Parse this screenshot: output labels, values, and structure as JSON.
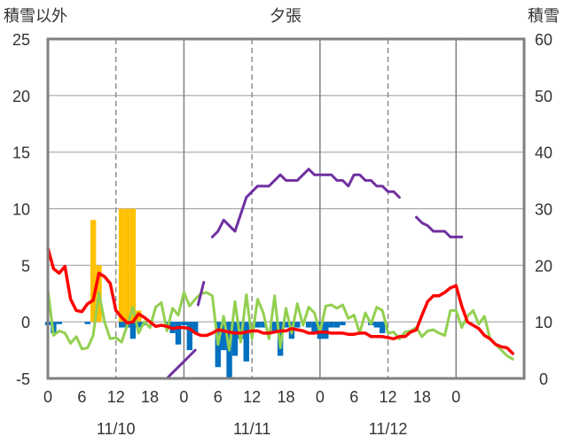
{
  "chart_data": {
    "type": "bar+line",
    "title": "夕張",
    "left_axis_title": "積雪以外",
    "right_axis_title": "積雪",
    "left_ylim": [
      -5,
      25
    ],
    "left_yticks": [
      "25",
      "20",
      "15",
      "10",
      "5",
      "0",
      "-5"
    ],
    "right_ylim": [
      0,
      60
    ],
    "right_yticks": [
      "60",
      "50",
      "40",
      "30",
      "20",
      "10",
      "0"
    ],
    "x_hour_labels": [
      "0",
      "6",
      "12",
      "18",
      "0",
      "6",
      "12",
      "18",
      "0",
      "6",
      "12",
      "18",
      "0"
    ],
    "date_labels": [
      "11/10",
      "11/11",
      "11/12"
    ],
    "grid": true,
    "colors": {
      "snowfall_bar": "#ffc000",
      "precip_bar": "#0070c0",
      "temperature": "#ff0000",
      "dewpoint": "#92d050",
      "snow_depth": "#7030a0",
      "frame": "#808080"
    },
    "series": [
      {
        "key": "snowfall",
        "kind": "bar",
        "axis": "left",
        "color": "#ffc000",
        "points": [
          [
            8,
            9
          ],
          [
            9,
            5
          ],
          [
            13,
            10
          ],
          [
            14,
            10
          ],
          [
            15,
            10
          ],
          [
            16,
            1
          ]
        ]
      },
      {
        "key": "precip",
        "kind": "bar",
        "axis": "left",
        "color": "#0070c0",
        "points": [
          [
            0,
            -0.3
          ],
          [
            1,
            -1.0
          ],
          [
            2,
            -0.2
          ],
          [
            7,
            -0.2
          ],
          [
            13,
            -0.5
          ],
          [
            14,
            -0.5
          ],
          [
            15,
            -1.5
          ],
          [
            16,
            -0.5
          ],
          [
            17,
            -0.3
          ],
          [
            21,
            -0.5
          ],
          [
            22,
            -1.0
          ],
          [
            23,
            -2.0
          ],
          [
            24,
            -0.3
          ],
          [
            25,
            -2.5
          ],
          [
            26,
            -1.0
          ],
          [
            30,
            -4.0
          ],
          [
            31,
            -2.5
          ],
          [
            32,
            -5.0
          ],
          [
            33,
            -3.0
          ],
          [
            34,
            -1.5
          ],
          [
            35,
            -3.5
          ],
          [
            37,
            -0.5
          ],
          [
            38,
            -0.5
          ],
          [
            40,
            -1.0
          ],
          [
            41,
            -3.0
          ],
          [
            42,
            -0.5
          ],
          [
            43,
            -1.5
          ],
          [
            44,
            -0.5
          ],
          [
            46,
            -0.5
          ],
          [
            47,
            -1.0
          ],
          [
            48,
            -1.5
          ],
          [
            49,
            -1.5
          ],
          [
            50,
            -0.5
          ],
          [
            51,
            -0.5
          ],
          [
            52,
            -0.3
          ],
          [
            57,
            -0.3
          ],
          [
            58,
            -0.5
          ],
          [
            59,
            -1.0
          ]
        ]
      },
      {
        "key": "temperature",
        "kind": "line",
        "axis": "left",
        "color": "#ff0000",
        "points": [
          [
            0,
            6.5
          ],
          [
            1,
            4.7
          ],
          [
            2,
            4.3
          ],
          [
            3,
            4.9
          ],
          [
            4,
            2.0
          ],
          [
            5,
            1.0
          ],
          [
            6,
            0.9
          ],
          [
            7,
            1.6
          ],
          [
            8,
            1.9
          ],
          [
            9,
            4.3
          ],
          [
            10,
            4.0
          ],
          [
            11,
            3.4
          ],
          [
            12,
            1.0
          ],
          [
            13,
            0.4
          ],
          [
            14,
            -0.1
          ],
          [
            15,
            0.0
          ],
          [
            16,
            0.7
          ],
          [
            17,
            0.4
          ],
          [
            18,
            0.0
          ],
          [
            19,
            -0.4
          ],
          [
            20,
            -0.3
          ],
          [
            21,
            -0.4
          ],
          [
            22,
            -0.6
          ],
          [
            23,
            -0.5
          ],
          [
            24,
            -0.5
          ],
          [
            25,
            -0.6
          ],
          [
            26,
            -1.0
          ],
          [
            27,
            -1.2
          ],
          [
            28,
            -1.2
          ],
          [
            29,
            -1.0
          ],
          [
            30,
            -0.7
          ],
          [
            31,
            -0.8
          ],
          [
            32,
            -0.9
          ],
          [
            33,
            -1.0
          ],
          [
            34,
            -1.0
          ],
          [
            35,
            -0.9
          ],
          [
            36,
            -0.8
          ],
          [
            37,
            -0.8
          ],
          [
            38,
            -1.0
          ],
          [
            39,
            -1.0
          ],
          [
            40,
            -0.9
          ],
          [
            41,
            -0.8
          ],
          [
            42,
            -0.8
          ],
          [
            43,
            -0.6
          ],
          [
            44,
            -0.7
          ],
          [
            45,
            -0.8
          ],
          [
            46,
            -1.0
          ],
          [
            47,
            -1.0
          ],
          [
            48,
            -0.9
          ],
          [
            49,
            -0.9
          ],
          [
            50,
            -1.0
          ],
          [
            51,
            -1.0
          ],
          [
            52,
            -1.0
          ],
          [
            53,
            -1.1
          ],
          [
            54,
            -1.1
          ],
          [
            55,
            -1.0
          ],
          [
            56,
            -1.0
          ],
          [
            57,
            -1.3
          ],
          [
            58,
            -1.3
          ],
          [
            59,
            -1.3
          ],
          [
            60,
            -1.4
          ],
          [
            61,
            -1.5
          ],
          [
            62,
            -1.3
          ],
          [
            63,
            -1.3
          ],
          [
            64,
            -0.9
          ],
          [
            65,
            -0.7
          ],
          [
            66,
            0.6
          ],
          [
            67,
            1.8
          ],
          [
            68,
            2.3
          ],
          [
            69,
            2.3
          ],
          [
            70,
            2.6
          ],
          [
            71,
            3.0
          ],
          [
            72,
            3.2
          ],
          [
            73,
            1.4
          ],
          [
            74,
            0.0
          ],
          [
            75,
            -0.3
          ],
          [
            76,
            -0.6
          ],
          [
            77,
            -1.2
          ],
          [
            78,
            -1.5
          ],
          [
            79,
            -2.0
          ],
          [
            80,
            -2.2
          ],
          [
            81,
            -2.3
          ],
          [
            82,
            -2.8
          ]
        ]
      },
      {
        "key": "dewpoint",
        "kind": "line",
        "axis": "left",
        "color": "#92d050",
        "points": [
          [
            0,
            2.8
          ],
          [
            1,
            -1.2
          ],
          [
            2,
            -0.8
          ],
          [
            3,
            -1.0
          ],
          [
            4,
            -1.9
          ],
          [
            5,
            -1.3
          ],
          [
            6,
            -2.4
          ],
          [
            7,
            -2.3
          ],
          [
            8,
            -1.2
          ],
          [
            9,
            2.6
          ],
          [
            10,
            0.0
          ],
          [
            11,
            -1.5
          ],
          [
            12,
            -1.4
          ],
          [
            13,
            -1.8
          ],
          [
            14,
            -0.3
          ],
          [
            15,
            1.3
          ],
          [
            16,
            -1.0
          ],
          [
            17,
            0.0
          ],
          [
            18,
            -0.5
          ],
          [
            19,
            1.3
          ],
          [
            20,
            1.7
          ],
          [
            21,
            -0.8
          ],
          [
            22,
            1.2
          ],
          [
            23,
            0.6
          ],
          [
            24,
            2.6
          ],
          [
            25,
            1.4
          ],
          [
            26,
            2.0
          ],
          [
            27,
            2.5
          ],
          [
            28,
            2.6
          ],
          [
            29,
            2.3
          ],
          [
            30,
            -2.0
          ],
          [
            31,
            0.5
          ],
          [
            32,
            -2.5
          ],
          [
            33,
            1.8
          ],
          [
            34,
            -1.8
          ],
          [
            35,
            2.4
          ],
          [
            36,
            -1.5
          ],
          [
            37,
            2.0
          ],
          [
            38,
            0.8
          ],
          [
            39,
            -1.5
          ],
          [
            40,
            2.3
          ],
          [
            41,
            -2.3
          ],
          [
            42,
            1.2
          ],
          [
            43,
            -1.0
          ],
          [
            44,
            1.6
          ],
          [
            45,
            -0.3
          ],
          [
            46,
            1.3
          ],
          [
            47,
            0.8
          ],
          [
            48,
            -0.9
          ],
          [
            49,
            1.4
          ],
          [
            50,
            1.5
          ],
          [
            51,
            1.2
          ],
          [
            52,
            1.5
          ],
          [
            53,
            0.3
          ],
          [
            54,
            0.6
          ],
          [
            55,
            -1.0
          ],
          [
            56,
            0.8
          ],
          [
            57,
            -0.2
          ],
          [
            58,
            1.3
          ],
          [
            59,
            1.0
          ],
          [
            60,
            -1.0
          ],
          [
            61,
            -0.9
          ],
          [
            62,
            -1.5
          ],
          [
            63,
            -0.9
          ],
          [
            64,
            -0.8
          ],
          [
            65,
            -0.5
          ],
          [
            66,
            -1.3
          ],
          [
            67,
            -0.8
          ],
          [
            68,
            -0.7
          ],
          [
            69,
            -1.0
          ],
          [
            70,
            -1.2
          ],
          [
            71,
            1.0
          ],
          [
            72,
            1.0
          ],
          [
            73,
            -0.5
          ],
          [
            74,
            0.5
          ],
          [
            75,
            1.0
          ],
          [
            76,
            -0.2
          ],
          [
            77,
            0.5
          ],
          [
            78,
            -1.5
          ],
          [
            79,
            -2.0
          ],
          [
            80,
            -2.5
          ],
          [
            81,
            -3.0
          ],
          [
            82,
            -3.3
          ]
        ]
      },
      {
        "key": "snow_depth",
        "kind": "line",
        "axis": "right",
        "color": "#7030a0",
        "segments": [
          [
            [
              0,
              0
            ],
            [
              18,
              0
            ],
            [
              19,
              0
            ],
            [
              20,
              0
            ],
            [
              21,
              0
            ],
            [
              22,
              1
            ],
            [
              23,
              2
            ],
            [
              24,
              3
            ],
            [
              25,
              4
            ],
            [
              26,
              5
            ]
          ],
          [
            [
              26.5,
              13
            ],
            [
              27.5,
              17
            ]
          ],
          [
            [
              29,
              25
            ],
            [
              30,
              26
            ],
            [
              31,
              28
            ],
            [
              32,
              27
            ],
            [
              33,
              26
            ],
            [
              34,
              29
            ],
            [
              35,
              32
            ],
            [
              36,
              33
            ],
            [
              37,
              34
            ],
            [
              38,
              34
            ],
            [
              39,
              34
            ],
            [
              40,
              35
            ],
            [
              41,
              36
            ],
            [
              42,
              35
            ],
            [
              43,
              35
            ],
            [
              44,
              35
            ],
            [
              45,
              36
            ],
            [
              46,
              37
            ],
            [
              47,
              36
            ],
            [
              48,
              36
            ],
            [
              49,
              36
            ],
            [
              50,
              36
            ],
            [
              51,
              35
            ],
            [
              52,
              35
            ],
            [
              53,
              34
            ],
            [
              54,
              36
            ],
            [
              55,
              36
            ],
            [
              56,
              35
            ],
            [
              57,
              35
            ],
            [
              58,
              34
            ],
            [
              59,
              34
            ],
            [
              60,
              33
            ],
            [
              61,
              33
            ],
            [
              62,
              32
            ]
          ],
          [
            [
              65,
              28.5
            ],
            [
              66,
              27.5
            ],
            [
              67,
              27
            ],
            [
              68,
              26
            ],
            [
              69,
              26
            ],
            [
              70,
              26
            ],
            [
              71,
              25
            ],
            [
              72,
              25
            ],
            [
              73,
              25
            ]
          ]
        ]
      }
    ]
  }
}
